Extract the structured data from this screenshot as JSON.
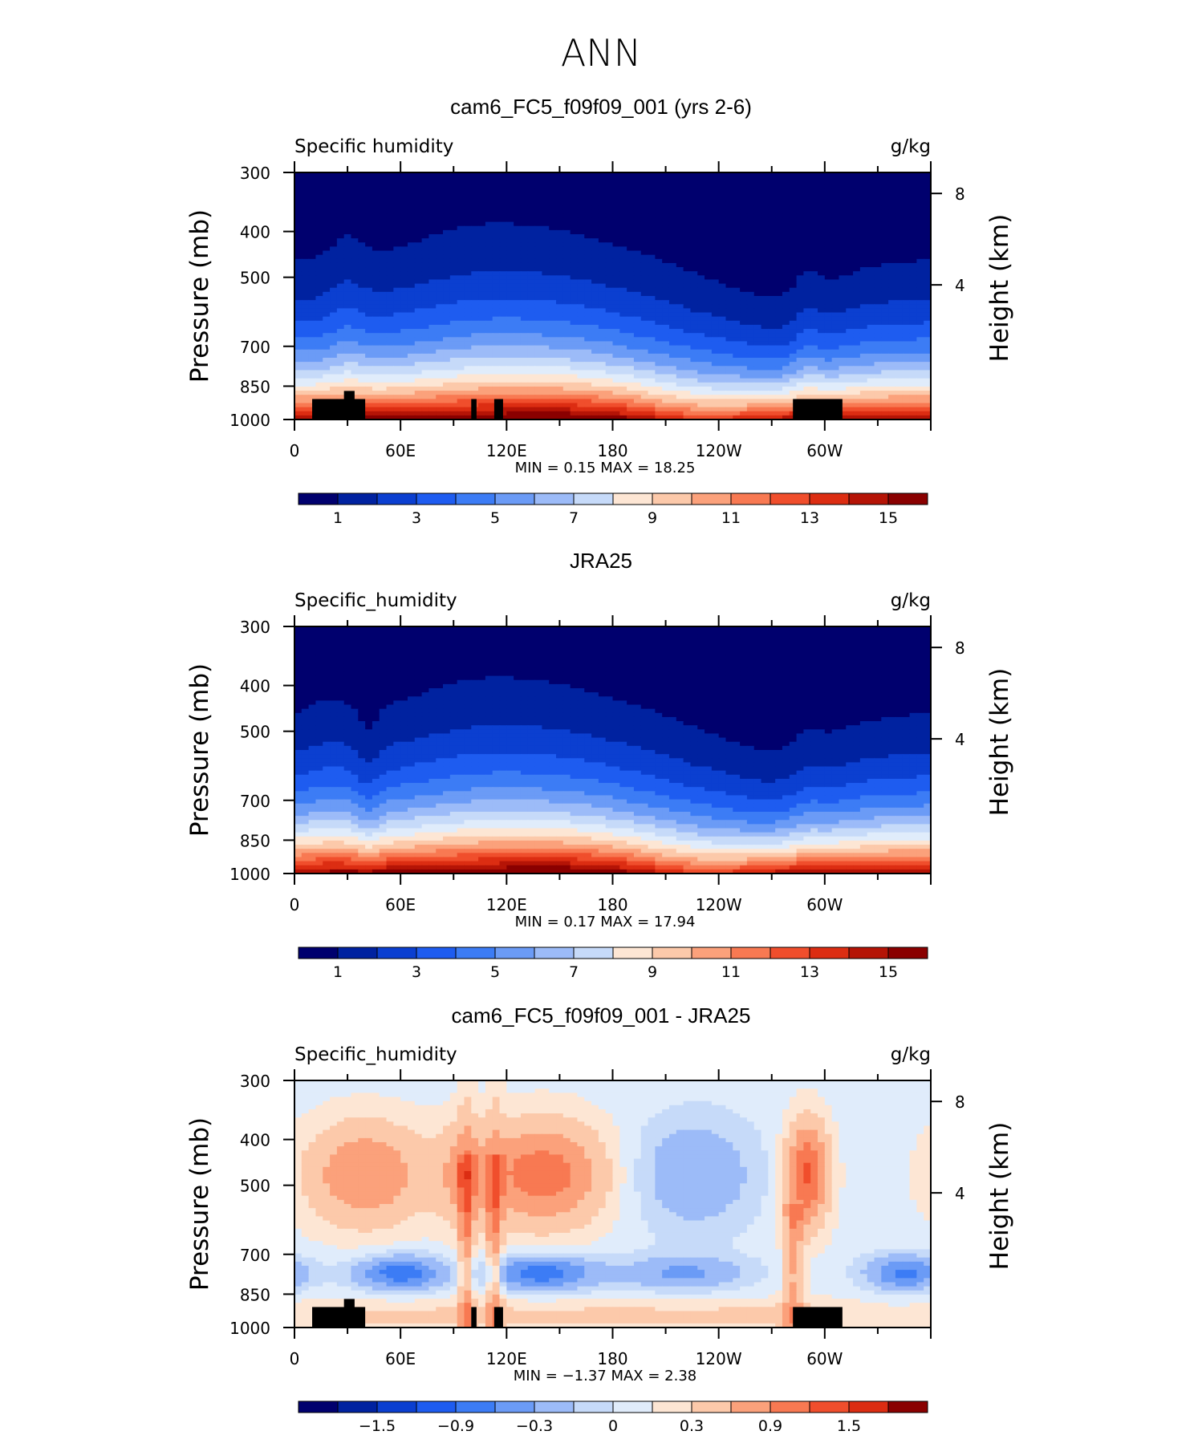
{
  "page": {
    "title": "ANN"
  },
  "chart_data": [
    {
      "type": "heatmap",
      "title": "cam6_FC5_f09f09_001 (yrs 2-6)",
      "left_label": "Specific humidity",
      "right_label": "g/kg",
      "xlabel": "",
      "ylabel": "Pressure (mb)",
      "ylabel_right": "Height (km)",
      "x_ticks": [
        "0",
        "60E",
        "120E",
        "180",
        "120W",
        "60W"
      ],
      "y_ticks": [
        "300",
        "400",
        "500",
        "700",
        "850",
        "1000"
      ],
      "y_right_ticks": [
        "8",
        "4"
      ],
      "ylim": [
        1000,
        300
      ],
      "stats": "MIN =    0.15   MAX =    18.25",
      "min": 0.15,
      "max": 18.25,
      "colorbar_labels": [
        "1",
        "3",
        "5",
        "7",
        "9",
        "11",
        "13",
        "15"
      ],
      "field": "model"
    },
    {
      "type": "heatmap",
      "title": "JRA25",
      "left_label": "Specific_humidity",
      "right_label": "g/kg",
      "xlabel": "",
      "ylabel": "Pressure (mb)",
      "ylabel_right": "Height (km)",
      "x_ticks": [
        "0",
        "60E",
        "120E",
        "180",
        "120W",
        "60W"
      ],
      "y_ticks": [
        "300",
        "400",
        "500",
        "700",
        "850",
        "1000"
      ],
      "y_right_ticks": [
        "8",
        "4"
      ],
      "ylim": [
        1000,
        300
      ],
      "stats": "MIN =    0.17   MAX =    17.94",
      "min": 0.17,
      "max": 17.94,
      "colorbar_labels": [
        "1",
        "3",
        "5",
        "7",
        "9",
        "11",
        "13",
        "15"
      ],
      "field": "obs"
    },
    {
      "type": "heatmap",
      "title": "cam6_FC5_f09f09_001 - JRA25",
      "left_label": "Specific_humidity",
      "right_label": "g/kg",
      "xlabel": "",
      "ylabel": "Pressure (mb)",
      "ylabel_right": "Height (km)",
      "x_ticks": [
        "0",
        "60E",
        "120E",
        "180",
        "120W",
        "60W"
      ],
      "y_ticks": [
        "300",
        "400",
        "500",
        "700",
        "850",
        "1000"
      ],
      "y_right_ticks": [
        "8",
        "4"
      ],
      "ylim": [
        1000,
        300
      ],
      "stats": "MIN =   −1.37   MAX =    2.38",
      "min": -1.37,
      "max": 2.38,
      "colorbar_labels": [
        "−1.5",
        "−0.9",
        "−0.3",
        "0",
        "0.3",
        "0.9",
        "1.5"
      ],
      "field": "diff"
    }
  ],
  "colors": {
    "scale": [
      "#00006e",
      "#0022a0",
      "#0b3fd0",
      "#1e5cf0",
      "#3c7cf5",
      "#6b9bf6",
      "#9cbbf8",
      "#c6daf9",
      "#e0ecfb",
      "#fde6d4",
      "#fcc9aa",
      "#fba17b",
      "#f87952",
      "#f04e2c",
      "#dc2d12",
      "#b51406",
      "#8a0000"
    ],
    "topography": "#000000"
  }
}
